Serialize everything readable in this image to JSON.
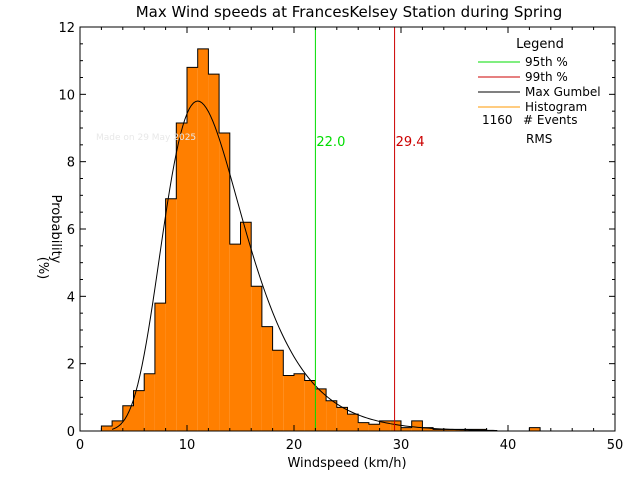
{
  "chart_data": {
    "type": "bar",
    "title": "Max Wind speeds at FrancesKelsey Station during Spring",
    "xlabel": "Windspeed (km/h)",
    "ylabel": "Probability",
    "ylabel_unit": "(%)",
    "xlim": [
      0,
      50
    ],
    "ylim": [
      0,
      12
    ],
    "x_ticks": [
      "0",
      "10",
      "20",
      "30",
      "40",
      "50"
    ],
    "y_ticks": [
      "0",
      "2",
      "4",
      "6",
      "8",
      "10",
      "12"
    ],
    "bin_width": 1,
    "histogram": {
      "color": "#ff7f00",
      "bins_start": [
        2,
        3,
        4,
        5,
        6,
        7,
        8,
        9,
        10,
        11,
        12,
        13,
        14,
        15,
        16,
        17,
        18,
        19,
        20,
        21,
        22,
        23,
        24,
        25,
        26,
        27,
        28,
        29,
        30,
        31,
        32,
        33,
        34,
        35,
        36,
        37,
        38,
        39,
        40,
        41,
        42
      ],
      "values": [
        0.15,
        0.3,
        0.75,
        1.2,
        1.7,
        3.8,
        6.9,
        9.15,
        10.8,
        11.35,
        10.6,
        8.85,
        5.55,
        6.2,
        4.3,
        3.1,
        2.4,
        1.65,
        1.7,
        1.5,
        1.25,
        0.9,
        0.7,
        0.5,
        0.25,
        0.2,
        0.3,
        0.3,
        0.1,
        0.3,
        0.1,
        0.05,
        0.05,
        0.05,
        0.05,
        0.05,
        0.0,
        0.0,
        0.0,
        0.0,
        0.1
      ]
    },
    "gumbel_curve": {
      "color": "#000000",
      "mode": 11,
      "peak": 9.8,
      "scale": 3.75,
      "x_range": [
        3,
        39
      ]
    },
    "percentiles": [
      {
        "label": "95th %",
        "value": 22.0,
        "value_label": "22.0",
        "color": "#00dd00"
      },
      {
        "label": "99th %",
        "value": 29.4,
        "value_label": "29.4",
        "color": "#cc0000"
      }
    ],
    "legend": {
      "title": "Legend",
      "placement": "top-right",
      "entries": [
        {
          "label": "95th %",
          "color": "#00dd00"
        },
        {
          "label": "99th %",
          "color": "#cc0000"
        },
        {
          "label": "Max Gumbel",
          "color": "#000000"
        },
        {
          "label": "Histogram",
          "color": "#ff9900"
        }
      ],
      "events_count": "1160",
      "events_label": "# Events",
      "rms_label": "RMS"
    },
    "watermark": "Made on 29 May 2025"
  }
}
